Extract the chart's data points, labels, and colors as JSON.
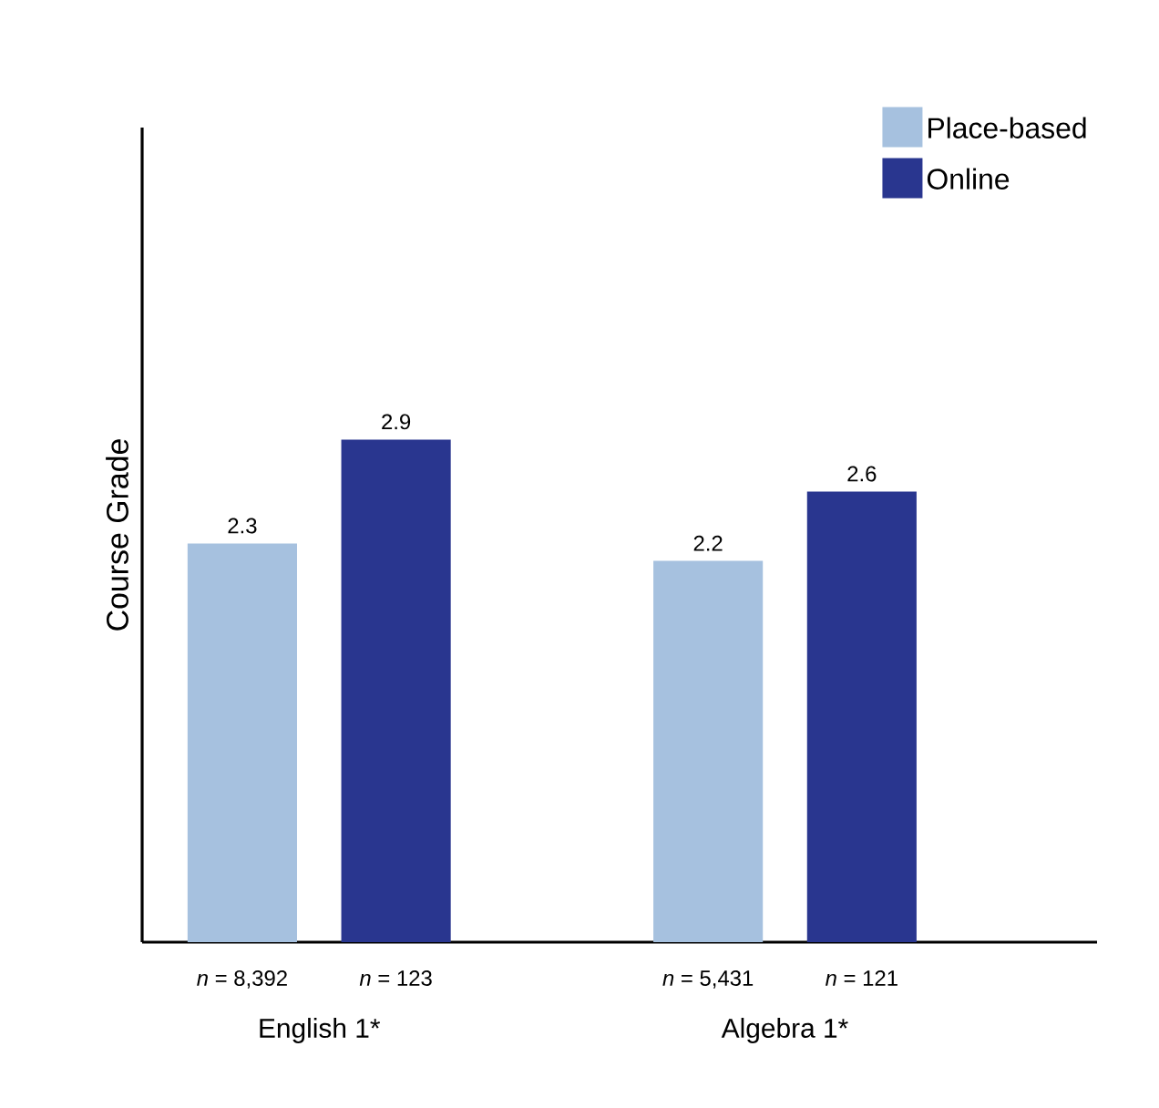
{
  "chart_data": {
    "type": "bar",
    "ylabel": "Course Grade",
    "categories": [
      "English 1*",
      "Algebra 1*"
    ],
    "series": [
      {
        "name": "Place-based",
        "color": "#a6c1df",
        "values": [
          2.3,
          2.2
        ]
      },
      {
        "name": "Online",
        "color": "#29368f",
        "values": [
          2.9,
          2.6
        ]
      }
    ],
    "ylim": [
      0,
      4.7
    ],
    "data_labels": true,
    "legend": "top right",
    "annotations": [
      "*n* = 8,392",
      "*n* = 123",
      "*n* = 5,431",
      "*n* = 121"
    ]
  }
}
